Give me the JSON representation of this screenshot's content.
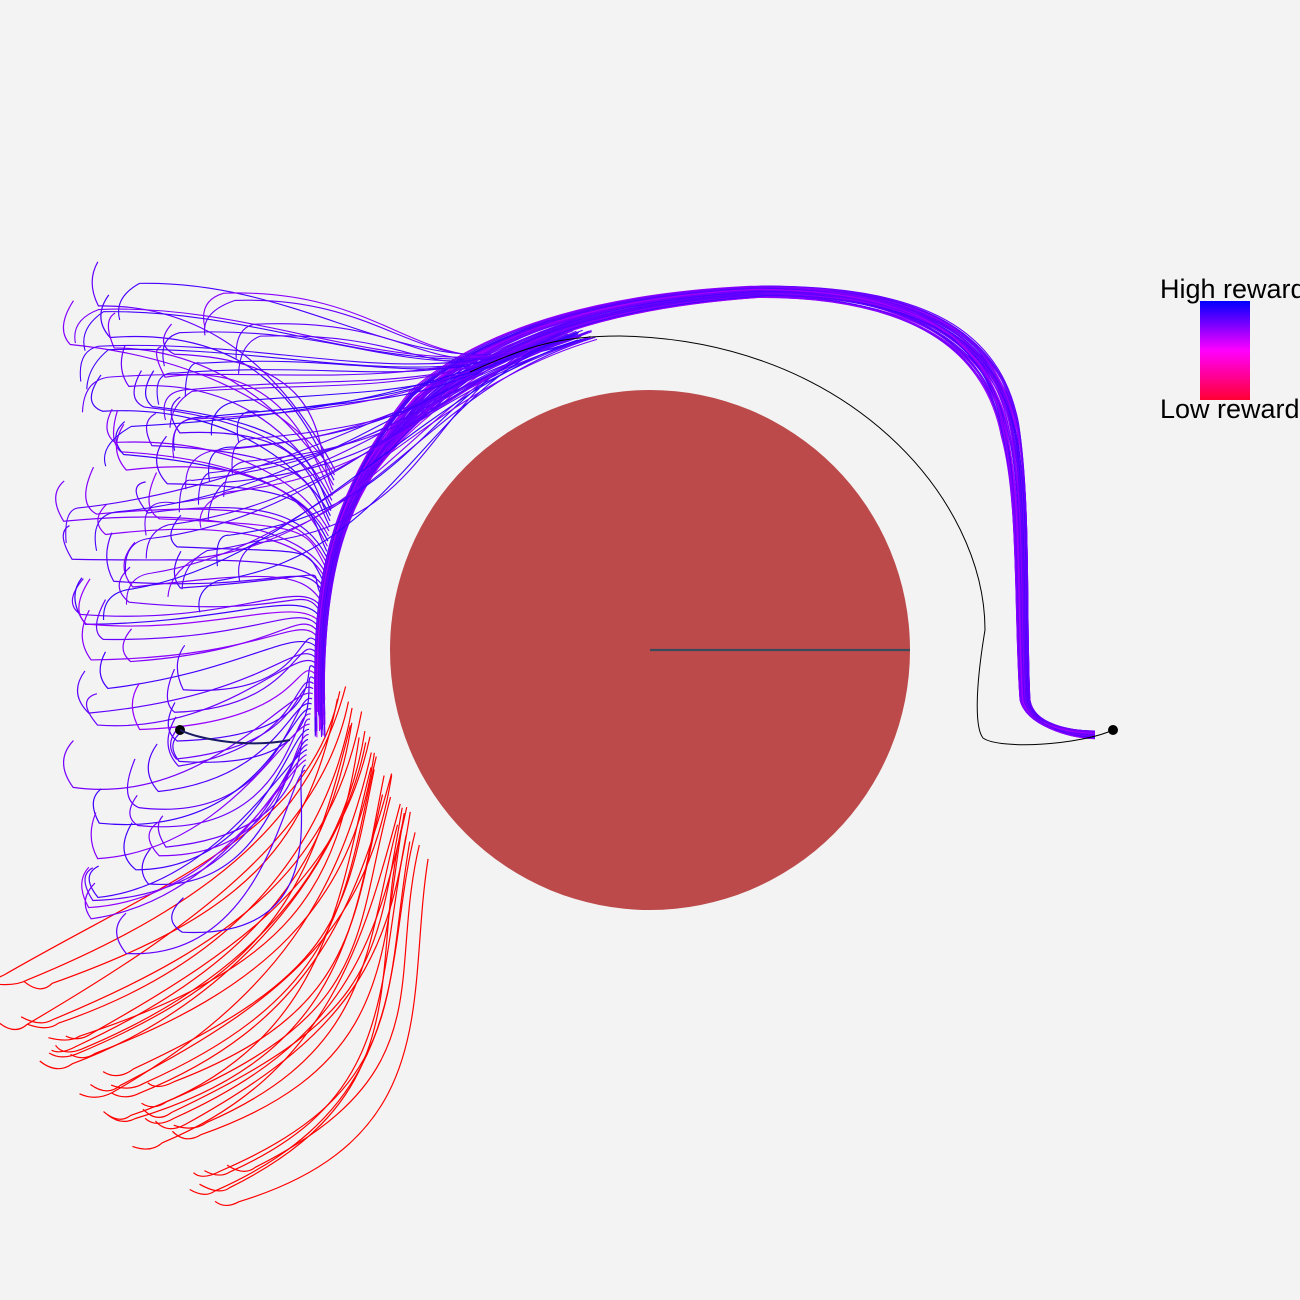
{
  "legend": {
    "high_label": "High reward",
    "low_label": "Low reward",
    "gradient_colors": [
      "#ff0033",
      "#ff00ff",
      "#0000ff"
    ]
  },
  "colors": {
    "background": "#f3f3f3",
    "obstacle": "#bc4a4a",
    "radius_line": "#3a4a5a",
    "reference_path": "#000000",
    "marker": "#000000",
    "low_reward": "#ff0000",
    "mid_reward": "#8800ff",
    "high_reward": "#3300ff"
  }
}
